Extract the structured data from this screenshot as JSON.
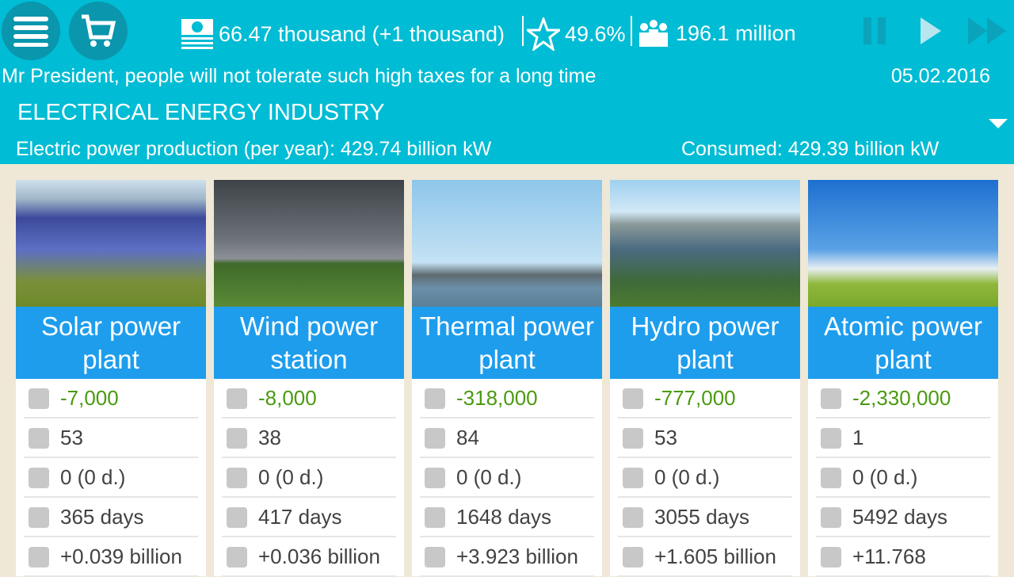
{
  "header": {
    "money": "66.47 thousand (+1 thousand)",
    "rating": "49.6%",
    "population": "196.1 million",
    "message": "Mr President, people will not tolerate such high taxes for a long time",
    "date": "05.02.2016"
  },
  "section": {
    "title": "ELECTRICAL ENERGY INDUSTRY",
    "production": "Electric power production (per year): 429.74 billion kW",
    "consumed": "Consumed: 429.39 billion kW"
  },
  "colors": {
    "topbar": "#00bcd4",
    "card_title": "#1e9ded",
    "cost": "#4a9a10",
    "background": "#efe8d6"
  },
  "plants": [
    {
      "title": "Solar power plant",
      "cost": "-7,000",
      "count": "53",
      "upkeep": "0 (0 d.)",
      "build_time": "365 days",
      "output": "+0.039 billion"
    },
    {
      "title": "Wind power station",
      "cost": "-8,000",
      "count": "38",
      "upkeep": "0 (0 d.)",
      "build_time": "417 days",
      "output": "+0.036 billion"
    },
    {
      "title": "Thermal power plant",
      "cost": "-318,000",
      "count": "84",
      "upkeep": "0 (0 d.)",
      "build_time": "1648 days",
      "output": "+3.923 billion"
    },
    {
      "title": "Hydro power plant",
      "cost": "-777,000",
      "count": "53",
      "upkeep": "0 (0 d.)",
      "build_time": "3055 days",
      "output": "+1.605 billion"
    },
    {
      "title": "Atomic power plant",
      "cost": "-2,330,000",
      "count": "1",
      "upkeep": "0 (0 d.)",
      "build_time": "5492 days",
      "output": "+11.768"
    }
  ]
}
